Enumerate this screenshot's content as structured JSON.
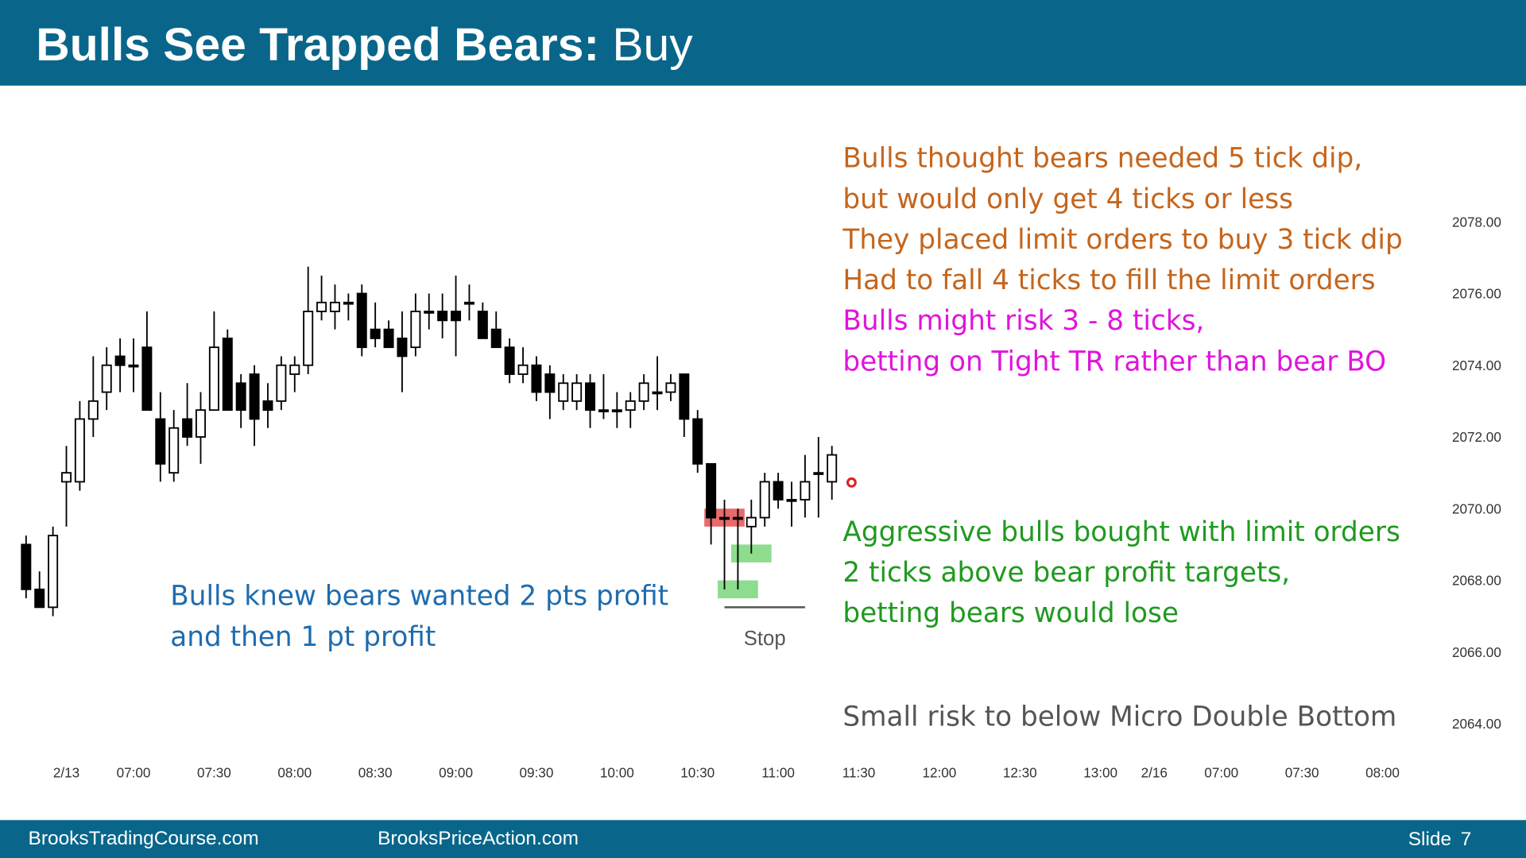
{
  "header": {
    "title": "Bulls See Trapped Bears:",
    "title_suffix": "Buy"
  },
  "footer": {
    "left": "BrooksTradingCourse.com",
    "middle": "BrooksPriceAction.com",
    "slide": "Slide 7"
  },
  "chart_data": {
    "type": "candlestick",
    "up_color": "#ffffff",
    "down_color": "#000000",
    "open": [
      2069,
      2067.75,
      2067.25,
      2070.75,
      2070.75,
      2072.5,
      2073.25,
      2074.25,
      2074,
      2074.5,
      2072.5,
      2071,
      2072.5,
      2072,
      2072.75,
      2074.75,
      2073.5,
      2073.75,
      2073,
      2073,
      2073.75,
      2074,
      2075.5,
      2075.5,
      2075.75,
      2076,
      2075,
      2075,
      2074.75,
      2074.5,
      2075.5,
      2075.5,
      2075.5,
      2075.75,
      2075.5,
      2075,
      2074.5,
      2073.75,
      2074,
      2073.75,
      2073,
      2073,
      2073.5,
      2072.75,
      2072.75,
      2072.75,
      2073,
      2073.25,
      2073.25,
      2073.75,
      2072.5,
      2071.25,
      2069.75,
      2069.75,
      2069.5,
      2069.75,
      2070.75,
      2070.25,
      2070.25,
      2071,
      2070.75
    ],
    "high": [
      2069.25,
      2068.25,
      2069.5,
      2071.75,
      2073,
      2074.25,
      2074.5,
      2074.75,
      2074.75,
      2075.5,
      2073.25,
      2072.75,
      2073.5,
      2073.25,
      2075.5,
      2075,
      2073.75,
      2074,
      2073.5,
      2074.25,
      2074.25,
      2076.75,
      2076.5,
      2076.25,
      2076,
      2076.25,
      2075.75,
      2075.25,
      2075.5,
      2076,
      2076,
      2076,
      2076.5,
      2076.25,
      2075.75,
      2075.5,
      2074.75,
      2074.5,
      2074.25,
      2074,
      2073.75,
      2073.75,
      2073.75,
      2073.75,
      2073.25,
      2073.25,
      2073.75,
      2074.25,
      2073.75,
      2073.75,
      2072.75,
      2071.25,
      2070.25,
      2070,
      2070.25,
      2071,
      2071,
      2070.75,
      2071.5,
      2072,
      2071.75
    ],
    "low": [
      2067.5,
      2067.25,
      2067,
      2069.5,
      2070.5,
      2072,
      2072.75,
      2073.25,
      2073.25,
      2072.75,
      2070.75,
      2070.75,
      2071.75,
      2071.25,
      2072.75,
      2072.75,
      2072.25,
      2071.75,
      2072.25,
      2072.75,
      2073.25,
      2073.75,
      2075.25,
      2075,
      2075.25,
      2074.25,
      2074.5,
      2074.5,
      2073.25,
      2074.25,
      2075,
      2074.75,
      2074.25,
      2075.25,
      2074.75,
      2074.5,
      2073.5,
      2073.5,
      2073,
      2072.5,
      2072.75,
      2072.75,
      2072.25,
      2072.5,
      2072.25,
      2072.25,
      2072.75,
      2072.75,
      2073,
      2072,
      2071,
      2069,
      2067.75,
      2067.75,
      2068.75,
      2069.5,
      2070,
      2069.5,
      2069.75,
      2069.75,
      2070.25
    ],
    "close": [
      2067.75,
      2067.25,
      2069.25,
      2071,
      2072.5,
      2073,
      2074,
      2074,
      2074,
      2072.75,
      2071.25,
      2072.25,
      2072,
      2072.75,
      2074.5,
      2072.75,
      2072.75,
      2072.5,
      2072.75,
      2074,
      2074,
      2075.5,
      2075.75,
      2075.75,
      2075.75,
      2074.5,
      2074.75,
      2074.5,
      2074.25,
      2075.5,
      2075.5,
      2075.25,
      2075.25,
      2075.75,
      2074.75,
      2074.5,
      2073.75,
      2074,
      2073.25,
      2073.25,
      2073.5,
      2073.5,
      2072.75,
      2072.75,
      2072.75,
      2073,
      2073.5,
      2073.25,
      2073.5,
      2072.5,
      2071.25,
      2069.75,
      2069.75,
      2069.75,
      2069.75,
      2070.75,
      2070.25,
      2070.25,
      2070.75,
      2071,
      2071.5
    ],
    "xlim": [
      -1,
      104
    ],
    "xticks": [
      {
        "value": 3,
        "label": "2/13"
      },
      {
        "value": 8,
        "label": "07:00"
      },
      {
        "value": 14,
        "label": "07:30"
      },
      {
        "value": 20,
        "label": "08:00"
      },
      {
        "value": 26,
        "label": "08:30"
      },
      {
        "value": 32,
        "label": "09:00"
      },
      {
        "value": 38,
        "label": "09:30"
      },
      {
        "value": 44,
        "label": "10:00"
      },
      {
        "value": 50,
        "label": "10:30"
      },
      {
        "value": 56,
        "label": "11:00"
      },
      {
        "value": 62,
        "label": "11:30"
      },
      {
        "value": 68,
        "label": "12:00"
      },
      {
        "value": 74,
        "label": "12:30"
      },
      {
        "value": 80,
        "label": "13:00"
      },
      {
        "value": 84,
        "label": "2/16"
      },
      {
        "value": 89,
        "label": "07:00"
      },
      {
        "value": 95,
        "label": "07:30"
      },
      {
        "value": 101,
        "label": "08:00"
      }
    ],
    "ylim": [
      2063.25,
      2081.5
    ],
    "yticks": [
      {
        "value": 2064,
        "label": "2064.00"
      },
      {
        "value": 2066,
        "label": "2066.00"
      },
      {
        "value": 2068,
        "label": "2068.00"
      },
      {
        "value": 2070,
        "label": "2070.00"
      },
      {
        "value": 2072,
        "label": "2072.00"
      },
      {
        "value": 2074,
        "label": "2074.00"
      },
      {
        "value": 2076,
        "label": "2076.00"
      },
      {
        "value": 2078,
        "label": "2078.00"
      }
    ],
    "zones": [
      {
        "color": "#e86a6a",
        "low": 2069.5,
        "high": 2070,
        "start": 51,
        "end": 53
      },
      {
        "color": "#8edc8e",
        "low": 2068.5,
        "high": 2069,
        "start": 53,
        "end": 55
      },
      {
        "color": "#8edc8e",
        "low": 2067.5,
        "high": 2068,
        "start": 52,
        "end": 54
      }
    ],
    "stop": {
      "label": "Stop",
      "value": 2067.25,
      "start": 52,
      "end": 58
    },
    "annotations": [
      {
        "color": "#c5651c",
        "lines": [
          "Bulls thought bears needed 5 tick dip,",
          "but would only get 4 ticks or less",
          "They placed limit orders to buy 3 tick dip",
          "Had to fall 4 ticks to fill the limit orders"
        ]
      },
      {
        "color": "#e014dc",
        "lines": [
          "Bulls might risk 3 - 8 ticks,",
          "betting on Tight TR rather than bear BO"
        ]
      },
      {
        "color": "#1f9a1f",
        "lines": [
          "Aggressive bulls bought with limit orders",
          "2 ticks above bear profit targets,",
          "betting bears would lose"
        ]
      },
      {
        "color": "#1e6cae",
        "lines": [
          "Bulls knew bears wanted 2 pts profit",
          "and then 1 pt profit"
        ]
      },
      {
        "color": "#555555",
        "lines": [
          "Small risk to below Micro Double Bottom"
        ]
      }
    ]
  }
}
